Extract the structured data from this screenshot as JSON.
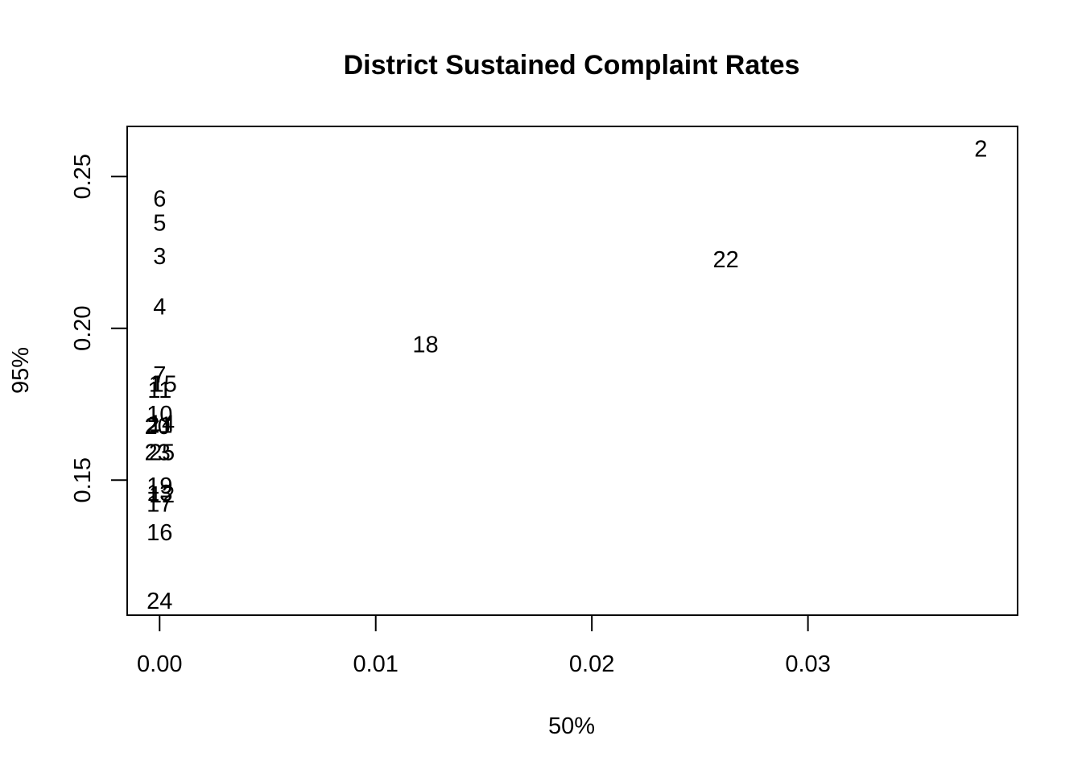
{
  "chart_data": {
    "type": "scatter",
    "title": "District Sustained Complaint Rates",
    "xlabel": "50%",
    "ylabel": "95%",
    "xlim": [
      -0.0015,
      0.0397
    ],
    "ylim": [
      0.1055,
      0.2665
    ],
    "x_ticks": [
      {
        "value": 0.0,
        "label": "0.00"
      },
      {
        "value": 0.01,
        "label": "0.01"
      },
      {
        "value": 0.02,
        "label": "0.02"
      },
      {
        "value": 0.03,
        "label": "0.03"
      }
    ],
    "y_ticks": [
      {
        "value": 0.15,
        "label": "0.15"
      },
      {
        "value": 0.2,
        "label": "0.20"
      },
      {
        "value": 0.25,
        "label": "0.25"
      }
    ],
    "grid": false,
    "points": [
      {
        "label": "2",
        "x": 0.038,
        "y": 0.259
      },
      {
        "label": "22",
        "x": 0.0262,
        "y": 0.2225
      },
      {
        "label": "18",
        "x": 0.0123,
        "y": 0.1945
      },
      {
        "label": "6",
        "x": 0.0,
        "y": 0.2425
      },
      {
        "label": "5",
        "x": 0.0,
        "y": 0.2345
      },
      {
        "label": "3",
        "x": 0.0,
        "y": 0.2235
      },
      {
        "label": "4",
        "x": 0.0,
        "y": 0.207
      },
      {
        "label": "7",
        "x": 0.0,
        "y": 0.1845
      },
      {
        "label": "1",
        "x": -0.0002,
        "y": 0.1815
      },
      {
        "label": "15",
        "x": 0.0002,
        "y": 0.1815
      },
      {
        "label": "11",
        "x": 0.0,
        "y": 0.1795
      },
      {
        "label": "10",
        "x": 0.0,
        "y": 0.1715
      },
      {
        "label": "14",
        "x": 0.0001,
        "y": 0.1685
      },
      {
        "label": "20",
        "x": -0.0001,
        "y": 0.1675
      },
      {
        "label": "21",
        "x": 0.0,
        "y": 0.168
      },
      {
        "label": "25",
        "x": 0.0001,
        "y": 0.159
      },
      {
        "label": "23",
        "x": -0.0001,
        "y": 0.159
      },
      {
        "label": "19",
        "x": 0.0,
        "y": 0.148
      },
      {
        "label": "13",
        "x": 0.0,
        "y": 0.1455
      },
      {
        "label": "12",
        "x": 0.0001,
        "y": 0.145
      },
      {
        "label": "17",
        "x": 0.0,
        "y": 0.142
      },
      {
        "label": "16",
        "x": 0.0,
        "y": 0.1325
      },
      {
        "label": "24",
        "x": 0.0,
        "y": 0.11
      }
    ]
  }
}
